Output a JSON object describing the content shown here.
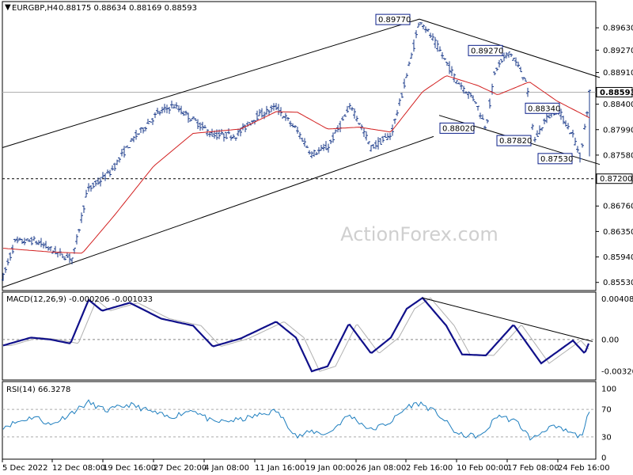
{
  "header": {
    "symbol": "EURGBP,H4",
    "ohlc": "0.88175 0.88634 0.88169 0.88593"
  },
  "watermark": "ActionForex.com",
  "colors": {
    "candle": "#1a3a8a",
    "ma": "#d21f1f",
    "macd": "#10108a",
    "signal": "#b0b0b0",
    "rsi": "#1f7fbf",
    "levelbox": "#0b1f8a"
  },
  "price_axis": [
    "0.89630",
    "0.89270",
    "0.88910",
    "0.88400",
    "0.87990",
    "0.87580",
    "0.87200",
    "0.86760",
    "0.86350",
    "0.85940",
    "0.85530"
  ],
  "current_price": "0.88593",
  "support_level": "0.87200",
  "level_labels": [
    "0.89770",
    "0.89270",
    "0.88340",
    "0.88020",
    "0.87820",
    "0.87530"
  ],
  "macd": {
    "label": "MACD(12,26,9) -0.000206 -0.001033",
    "axis": [
      "0.004083",
      "0.00",
      "-0.003209"
    ]
  },
  "rsi": {
    "label": "RSI(14) 66.3278",
    "axis": [
      "100",
      "70",
      "30",
      "0"
    ]
  },
  "x_axis": [
    "5 Dec 2022",
    "12 Dec 08:00",
    "19 Dec 16:00",
    "27 Dec 20:00",
    "4 Jan 08:00",
    "11 Jan 16:00",
    "19 Jan 00:00",
    "26 Jan 08:00",
    "2 Feb 16:00",
    "10 Feb 00:00",
    "17 Feb 08:00",
    "24 Feb 16:00"
  ],
  "chart_data": {
    "type": "line",
    "title": "EURGBP,H4",
    "ylim": [
      0.8545,
      0.8995
    ],
    "anchors": [
      [
        0,
        0.8562
      ],
      [
        15,
        0.8618
      ],
      [
        40,
        0.862
      ],
      [
        75,
        0.8596
      ],
      [
        88,
        0.8592
      ],
      [
        106,
        0.87
      ],
      [
        135,
        0.873
      ],
      [
        165,
        0.8785
      ],
      [
        195,
        0.8825
      ],
      [
        215,
        0.8838
      ],
      [
        240,
        0.8815
      ],
      [
        265,
        0.879
      ],
      [
        295,
        0.879
      ],
      [
        320,
        0.882
      ],
      [
        345,
        0.8835
      ],
      [
        370,
        0.88
      ],
      [
        390,
        0.876
      ],
      [
        410,
        0.877
      ],
      [
        440,
        0.8838
      ],
      [
        465,
        0.877
      ],
      [
        490,
        0.879
      ],
      [
        505,
        0.886
      ],
      [
        527,
        0.8977
      ],
      [
        550,
        0.893
      ],
      [
        572,
        0.888
      ],
      [
        597,
        0.8845
      ],
      [
        610,
        0.8802
      ],
      [
        622,
        0.8895
      ],
      [
        640,
        0.8925
      ],
      [
        660,
        0.888
      ],
      [
        672,
        0.8782
      ],
      [
        685,
        0.8815
      ],
      [
        700,
        0.8833
      ],
      [
        720,
        0.879
      ],
      [
        730,
        0.8753
      ],
      [
        741,
        0.8859
      ]
    ],
    "ma_anchors": [
      [
        0,
        0.8608
      ],
      [
        60,
        0.8602
      ],
      [
        100,
        0.86
      ],
      [
        140,
        0.866
      ],
      [
        190,
        0.874
      ],
      [
        240,
        0.8793
      ],
      [
        300,
        0.88
      ],
      [
        345,
        0.8828
      ],
      [
        372,
        0.8827
      ],
      [
        410,
        0.88
      ],
      [
        450,
        0.8803
      ],
      [
        490,
        0.8795
      ],
      [
        530,
        0.886
      ],
      [
        560,
        0.8886
      ],
      [
        600,
        0.887
      ],
      [
        625,
        0.8855
      ],
      [
        665,
        0.8876
      ],
      [
        700,
        0.8845
      ],
      [
        741,
        0.8818
      ]
    ],
    "channel_upper": [
      [
        0,
        0.877
      ],
      [
        527,
        0.8977
      ]
    ],
    "channel_lower": [
      [
        0,
        0.8545
      ],
      [
        545,
        0.8788
      ]
    ],
    "falling_resistance": [
      [
        527,
        0.8977
      ],
      [
        755,
        0.8883
      ]
    ],
    "falling_support": [
      [
        552,
        0.8822
      ],
      [
        755,
        0.8743
      ]
    ],
    "macd_anchors": [
      [
        0,
        -0.0006
      ],
      [
        35,
        0.0002
      ],
      [
        60,
        0.0
      ],
      [
        85,
        -0.0004
      ],
      [
        108,
        0.004
      ],
      [
        125,
        0.0029
      ],
      [
        160,
        0.0037
      ],
      [
        200,
        0.0021
      ],
      [
        240,
        0.0014
      ],
      [
        265,
        -0.0007
      ],
      [
        300,
        0.0001
      ],
      [
        345,
        0.0018
      ],
      [
        370,
        0.0002
      ],
      [
        390,
        -0.0032
      ],
      [
        410,
        -0.0027
      ],
      [
        437,
        0.0016
      ],
      [
        465,
        -0.0014
      ],
      [
        490,
        0.0002
      ],
      [
        510,
        0.0031
      ],
      [
        530,
        0.0042
      ],
      [
        560,
        0.0014
      ],
      [
        580,
        -0.0015
      ],
      [
        610,
        -0.0016
      ],
      [
        645,
        0.0015
      ],
      [
        680,
        -0.0024
      ],
      [
        720,
        -0.0001
      ],
      [
        735,
        -0.0014
      ],
      [
        741,
        -0.0002
      ]
    ],
    "macd_trend": [
      [
        530,
        0.0042
      ],
      [
        745,
        -0.0002
      ]
    ],
    "rsi_anchors": [
      [
        0,
        45
      ],
      [
        40,
        60
      ],
      [
        60,
        47
      ],
      [
        108,
        80
      ],
      [
        130,
        68
      ],
      [
        160,
        77
      ],
      [
        210,
        58
      ],
      [
        240,
        70
      ],
      [
        265,
        51
      ],
      [
        300,
        55
      ],
      [
        345,
        68
      ],
      [
        372,
        30
      ],
      [
        390,
        38
      ],
      [
        410,
        34
      ],
      [
        437,
        62
      ],
      [
        465,
        40
      ],
      [
        490,
        52
      ],
      [
        512,
        75
      ],
      [
        527,
        79
      ],
      [
        550,
        63
      ],
      [
        575,
        33
      ],
      [
        605,
        31
      ],
      [
        625,
        62
      ],
      [
        650,
        51
      ],
      [
        668,
        26
      ],
      [
        690,
        45
      ],
      [
        705,
        41
      ],
      [
        730,
        30
      ],
      [
        741,
        66
      ]
    ]
  }
}
